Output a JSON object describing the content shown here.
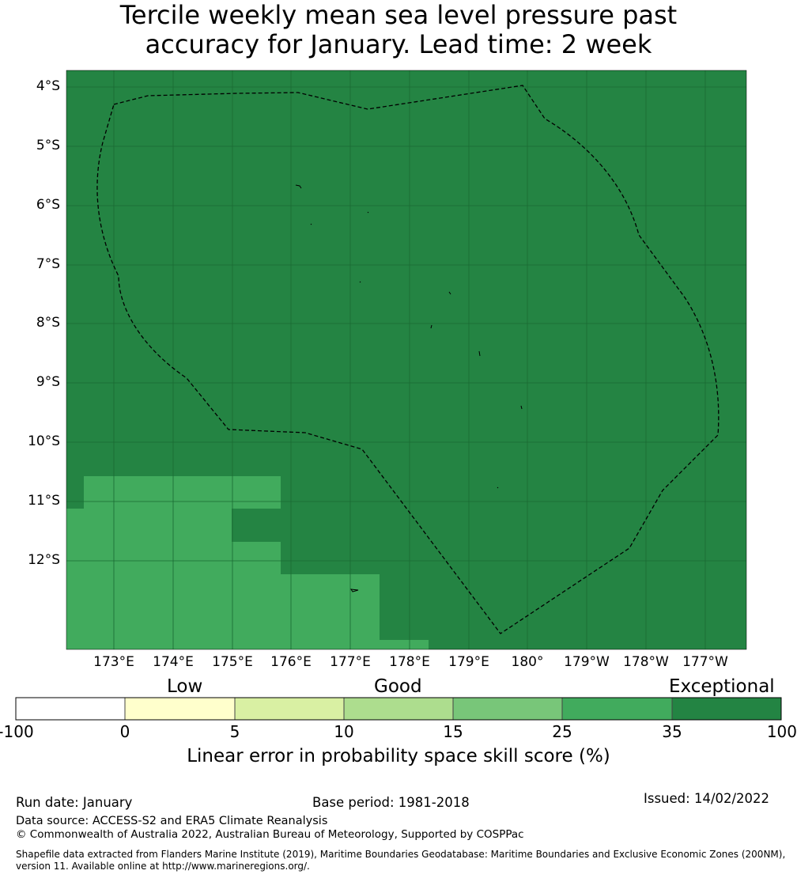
{
  "title": {
    "line1": "Tercile weekly mean sea level pressure past",
    "line2": "accuracy for January. Lead time: 2 week"
  },
  "map": {
    "lat_labels": [
      "4°S",
      "5°S",
      "6°S",
      "7°S",
      "8°S",
      "9°S",
      "10°S",
      "11°S",
      "12°S"
    ],
    "lon_labels": [
      "173°E",
      "174°E",
      "175°E",
      "176°E",
      "177°E",
      "178°E",
      "179°E",
      "180°",
      "179°W",
      "178°W",
      "177°W"
    ],
    "colors": {
      "exceptional": "#248443",
      "good_high": "#41ab5d",
      "grid": "#1a6a33",
      "boundary": "#000000"
    }
  },
  "colorbar": {
    "category_labels": [
      "Low",
      "Good",
      "Exceptional"
    ],
    "tick_labels": [
      "-100",
      "0",
      "5",
      "10",
      "15",
      "25",
      "35",
      "100"
    ],
    "colors": [
      "#ffffff",
      "#ffffcc",
      "#d9f0a3",
      "#addd8e",
      "#78c679",
      "#41ab5d",
      "#238443"
    ],
    "title": "Linear error in probability space skill score (%)"
  },
  "footer": {
    "run_date": "Run date: January",
    "base_period": "Base period: 1981-2018",
    "issued": "Issued: 14/02/2022",
    "data_source": "Data source: ACCESS-S2 and ERA5 Climate Reanalysis",
    "copyright": "© Commonwealth of Australia 2022, Australian Bureau of Meteorology, Supported by COSPPac",
    "shapefile_line1": "Shapefile data extracted from Flanders Marine Institute (2019), Maritime Boundaries Geodatabase: Maritime Boundaries and Exclusive Economic Zones (200NM),",
    "shapefile_line2": "version 11. Available online at http://www.marineregions.org/."
  }
}
